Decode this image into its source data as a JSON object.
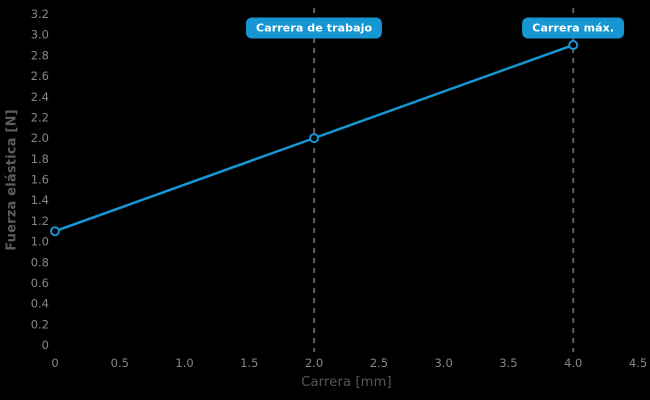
{
  "chart": {
    "background": "#000000",
    "accent": "#1697d4",
    "guide_color": "#5e5e5e",
    "tick_color": "#868686",
    "title_color": "#5d5d5d",
    "marker_fill": "#000000"
  },
  "chart_data": {
    "type": "line",
    "title": "",
    "xlabel": "Carrera [mm]",
    "ylabel": "Fuerza elástica [N]",
    "xlim": [
      0,
      4.5
    ],
    "ylim": [
      0,
      3.2
    ],
    "x_ticks": [
      "0",
      "0.5",
      "1.0",
      "1.5",
      "2.0",
      "2.5",
      "3.0",
      "3.5",
      "4.0",
      "4.5"
    ],
    "y_ticks": [
      "0",
      "0.2",
      "0.4",
      "0.6",
      "0.8",
      "1.0",
      "1.2",
      "1.4",
      "1.6",
      "1.8",
      "2.0",
      "2.2",
      "2.4",
      "2.6",
      "2.8",
      "3.0",
      "3.2"
    ],
    "grid": false,
    "legend": null,
    "series": [
      {
        "name": "Fuerza elástica",
        "x": [
          0,
          2.0,
          4.0
        ],
        "y": [
          1.1,
          2.0,
          2.9
        ]
      }
    ],
    "markers": [
      {
        "x": 0,
        "y": 1.1
      },
      {
        "x": 2.0,
        "y": 2.0
      },
      {
        "x": 4.0,
        "y": 2.9
      }
    ],
    "guides": [
      {
        "x": 2.0,
        "label": "Carrera de trabajo"
      },
      {
        "x": 4.0,
        "label": "Carrera máx."
      }
    ]
  }
}
